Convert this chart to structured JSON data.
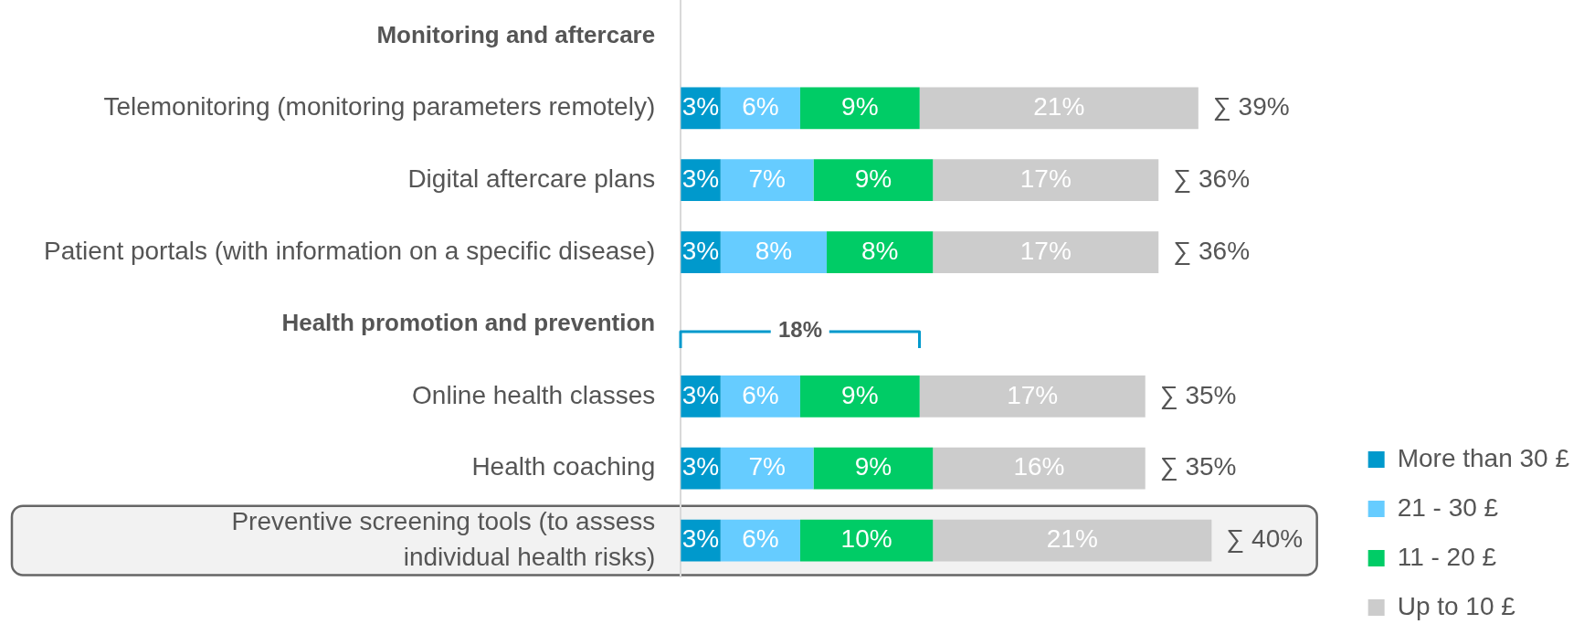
{
  "chart_data": {
    "type": "bar",
    "orientation": "horizontal",
    "stacked": true,
    "categories": [
      "Monitoring and aftercare",
      "Telemonitoring (monitoring parameters remotely)",
      "Digital aftercare plans",
      "Patient portals (with information on a specific disease)",
      "Health promotion and prevention",
      "Online health classes",
      "Health coaching",
      "Preventive screening tools (to assess individual health risks)"
    ],
    "series": [
      {
        "name": "More than 30 £",
        "color": "#0099cc",
        "values": [
          null,
          3,
          3,
          3,
          null,
          3,
          3,
          3
        ],
        "value_labels": [
          null,
          "3%",
          "3%",
          "3%",
          null,
          "3%",
          "3%",
          "3%"
        ]
      },
      {
        "name": "21 - 30 £",
        "color": "#66ccff",
        "values": [
          null,
          6,
          7,
          8,
          null,
          6,
          7,
          6
        ],
        "value_labels": [
          null,
          "6%",
          "7%",
          "8%",
          null,
          "6%",
          "7%",
          "6%"
        ]
      },
      {
        "name": "11 - 20 £",
        "color": "#00cc66",
        "values": [
          null,
          9,
          9,
          8,
          null,
          9,
          9,
          10
        ],
        "value_labels": [
          null,
          "9%",
          "9%",
          "8%",
          null,
          "9%",
          "9%",
          "10%"
        ]
      },
      {
        "name": "Up to 10 £",
        "color": "#cccccc",
        "values": [
          null,
          21,
          17,
          17,
          null,
          17,
          16,
          21
        ],
        "value_labels": [
          null,
          "21%",
          "17%",
          "17%",
          null,
          "17%",
          "16%",
          "21%"
        ]
      }
    ],
    "totals": [
      null,
      "∑ 39%",
      "∑ 36%",
      "∑ 36%",
      null,
      "∑ 35%",
      "∑ 35%",
      "∑ 40%"
    ],
    "tick_labels": "y",
    "grid": false,
    "legend": "bottom right",
    "annotations": [
      {
        "text": "18%",
        "x": 9,
        "y": "Online health classes"
      }
    ],
    "bands": [
      {
        "axis": "y",
        "from": "Preventive screening tools (to assess individual health risks)",
        "to": "Preventive screening tools (to assess individual health risks)",
        "color": "#f2f2f2"
      }
    ]
  }
}
